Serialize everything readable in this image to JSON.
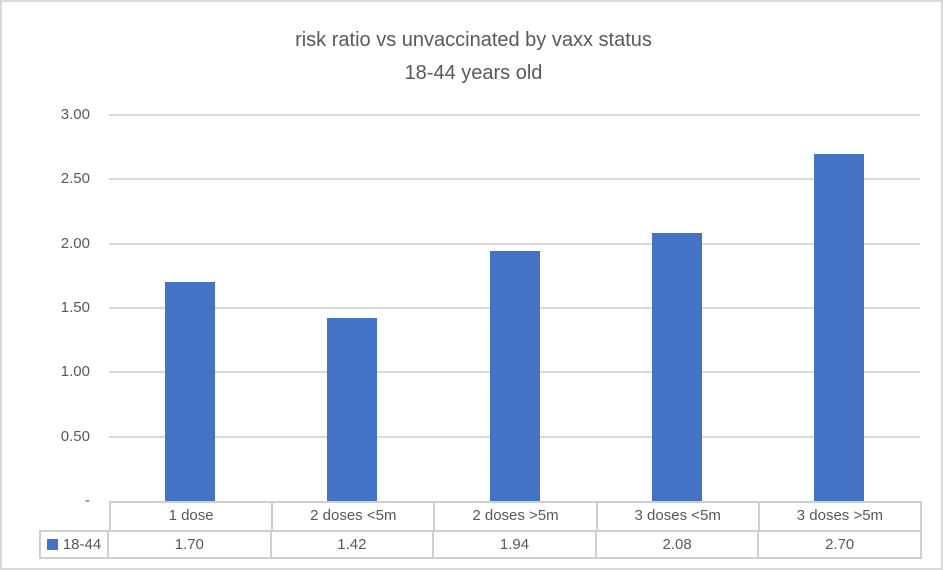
{
  "chart_data": {
    "type": "bar",
    "title": "risk ratio vs unvaccinated by vaxx status",
    "subtitle": "18-44 years old",
    "xlabel": "",
    "ylabel": "",
    "categories": [
      "1 dose",
      "2 doses <5m",
      "2 doses >5m",
      "3 doses <5m",
      "3 doses >5m"
    ],
    "series": [
      {
        "name": "18-44",
        "values": [
          1.7,
          1.42,
          1.94,
          2.08,
          2.7
        ],
        "values_display": [
          "1.70",
          "1.42",
          "1.94",
          "2.08",
          "2.70"
        ]
      }
    ],
    "ylim": [
      0,
      3
    ],
    "yticks": [
      {
        "value": 3.0,
        "label": "3.00"
      },
      {
        "value": 2.5,
        "label": "2.50"
      },
      {
        "value": 2.0,
        "label": "2.00"
      },
      {
        "value": 1.5,
        "label": "1.50"
      },
      {
        "value": 1.0,
        "label": "1.00"
      },
      {
        "value": 0.5,
        "label": "0.50"
      },
      {
        "value": 0.0,
        "label": "-"
      }
    ],
    "grid": true,
    "legend_position": "data-table-bottom-left"
  },
  "colors": {
    "bar": "#4472C4",
    "gridline": "#D9D9D9",
    "table_border": "#CFCFCF",
    "text": "#595959",
    "frame_border": "#D9D9D9",
    "background": "#FFFFFF"
  }
}
